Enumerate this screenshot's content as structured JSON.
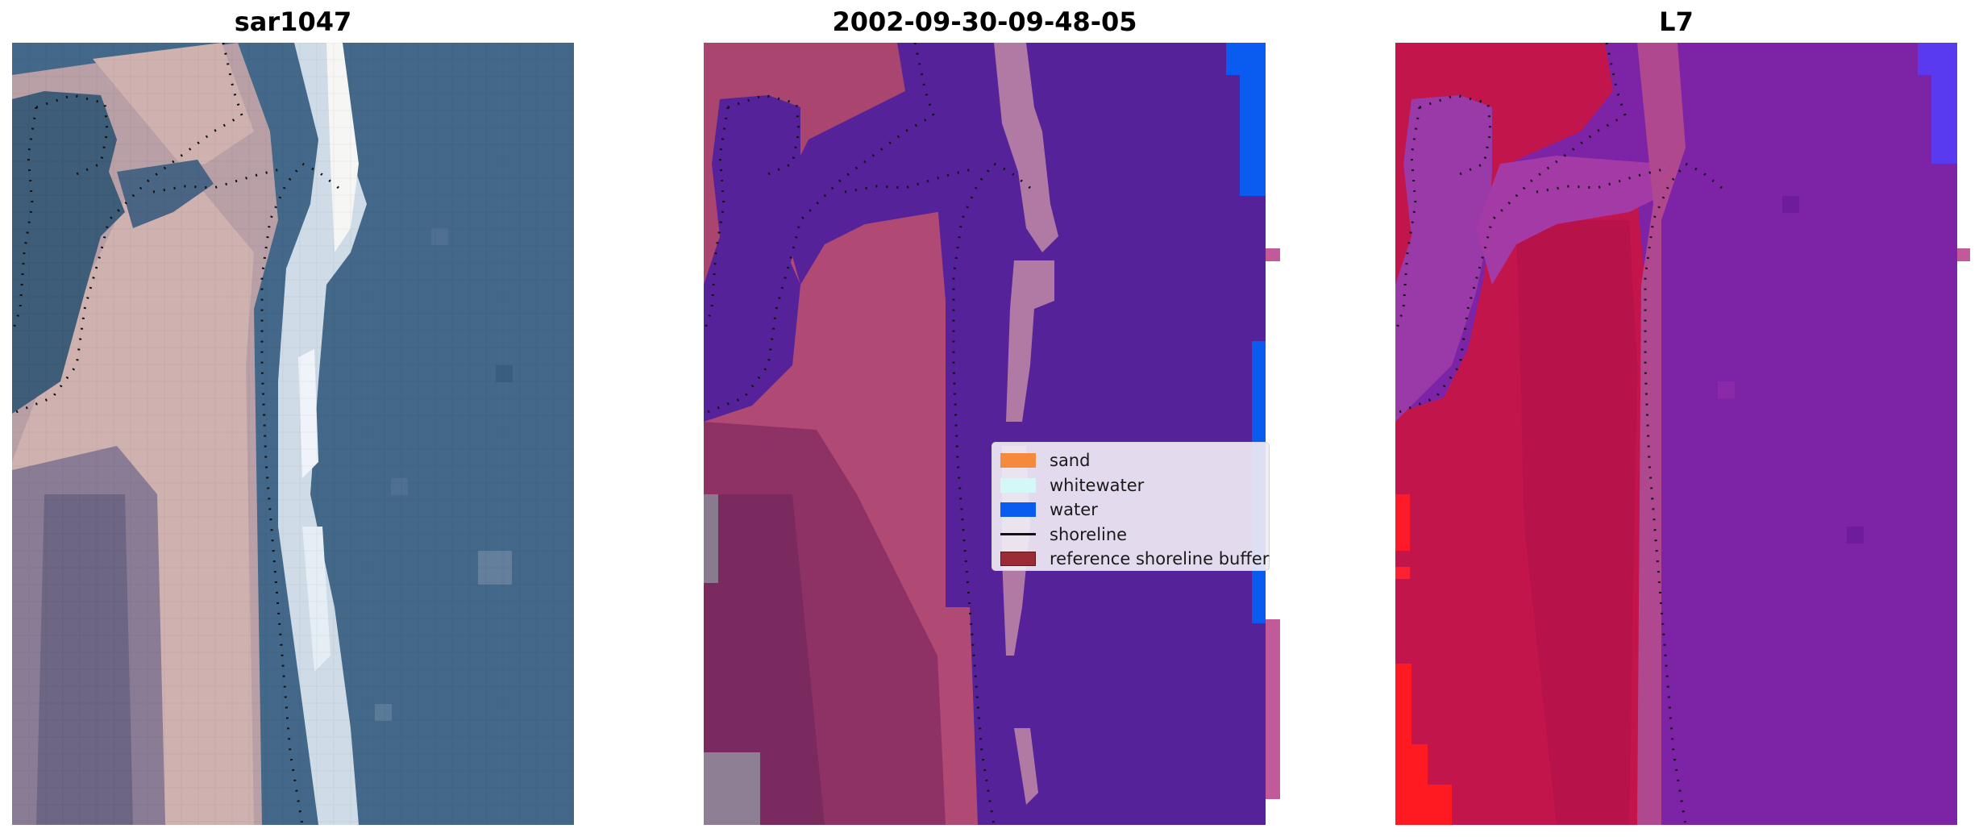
{
  "panels": [
    {
      "title": "sar1047"
    },
    {
      "title": "2002-09-30-09-48-05"
    },
    {
      "title": "L7"
    }
  ],
  "legend": {
    "items": [
      {
        "label": "sand",
        "color": "#f58a3c",
        "kind": "patch"
      },
      {
        "label": "whitewater",
        "color": "#d4f8f8",
        "kind": "patch"
      },
      {
        "label": "water",
        "color": "#0a5cf0",
        "kind": "patch"
      },
      {
        "label": "shoreline",
        "color": "#111111",
        "kind": "line"
      },
      {
        "label": "reference shoreline buffer",
        "color": "#9b2b34",
        "kind": "patch",
        "edge": "#5a1a1a"
      }
    ]
  },
  "colors": {
    "rgb_water": "#43688a",
    "rgb_land": "#c9a3a6",
    "class_water": "#55229a",
    "class_sand": "#a9456e",
    "ndwi_water": "#7d23a6",
    "ndwi_land": "#c2154c"
  }
}
